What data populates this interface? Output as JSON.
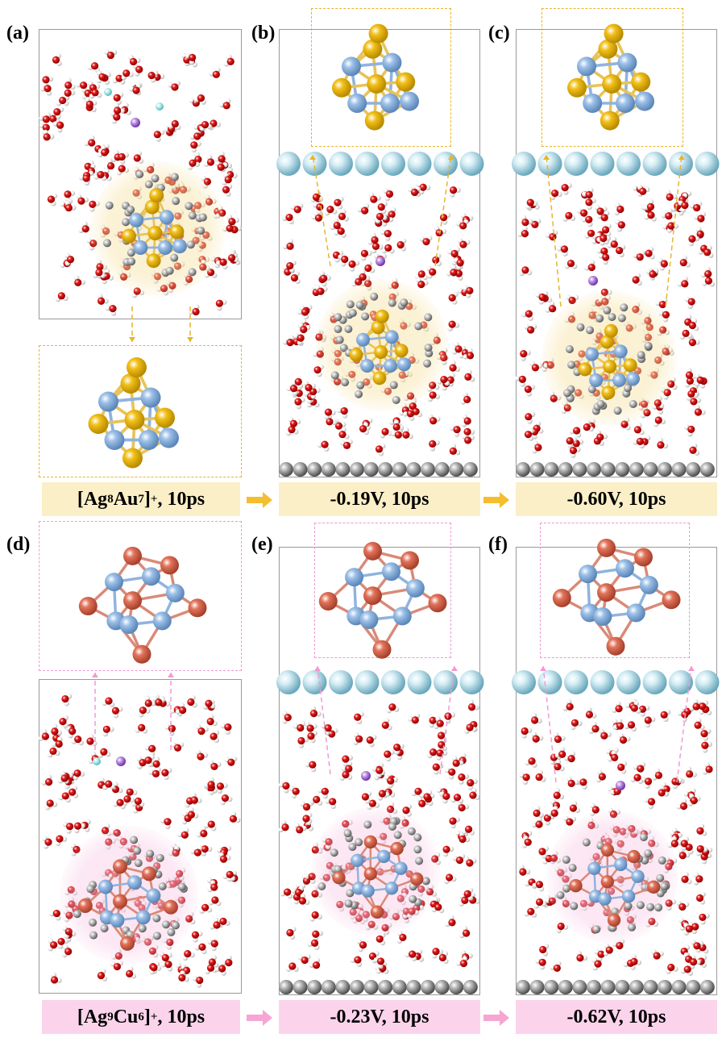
{
  "panels": [
    {
      "letter": "(a)",
      "caption_pre": "[Ag",
      "caption_s1": "8",
      "caption_mid": "Au",
      "caption_s2": "7",
      "caption_post": "]",
      "caption_sup": "+",
      "caption_tail": ", 10ps"
    },
    {
      "letter": "(b)",
      "caption": "-0.19V, 10ps"
    },
    {
      "letter": "(c)",
      "caption": "-0.60V, 10ps"
    },
    {
      "letter": "(d)",
      "caption_pre": "[Ag",
      "caption_s1": "9",
      "caption_mid": "Cu",
      "caption_s2": "6",
      "caption_post": "]",
      "caption_sup": "+",
      "caption_tail": ", 10ps"
    },
    {
      "letter": "(e)",
      "caption": "-0.23V, 10ps"
    },
    {
      "letter": "(f)",
      "caption": "-0.62V, 10ps"
    }
  ],
  "colors": {
    "ag": "#9cc0e8",
    "au": "#f2c019",
    "cu": "#e2735a",
    "oxygen": "#e41b1b",
    "hydrogen": "#f2f2f2",
    "carbon": "#9a9a9a",
    "electrode_top": "#9cd0e0",
    "electrode_bottom": "#888888",
    "gold_dash": "#e8b428",
    "pink_dash": "#f19ad0",
    "arrow_gold": "#f5be2e",
    "arrow_pink": "#f7a5d3"
  }
}
